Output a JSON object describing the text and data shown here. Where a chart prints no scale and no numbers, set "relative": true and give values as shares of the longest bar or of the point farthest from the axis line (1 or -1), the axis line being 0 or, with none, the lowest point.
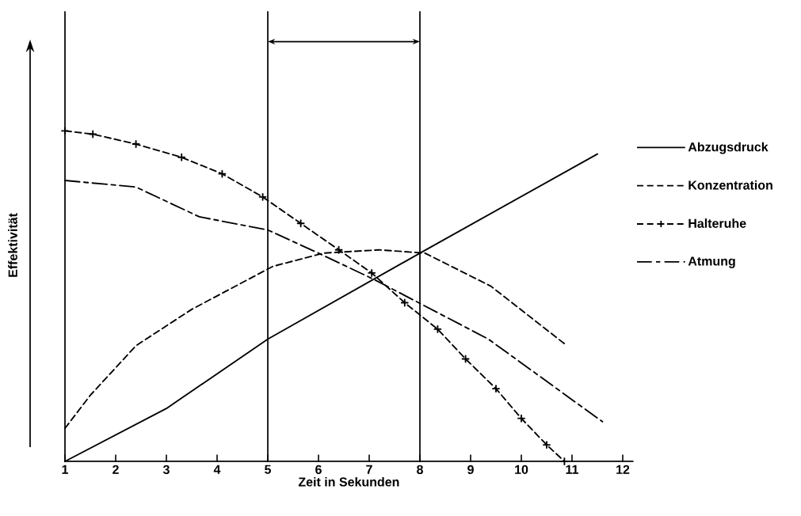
{
  "chart_data": {
    "type": "line",
    "xlabel": "Zeit in Sekunden",
    "ylabel": "Effektivität",
    "relative": true,
    "xlim": [
      1,
      12.2
    ],
    "xticks": [
      1,
      2,
      3,
      4,
      5,
      6,
      7,
      8,
      9,
      10,
      11,
      12
    ],
    "legend": "right",
    "ref_lines": [
      {
        "axis": "x",
        "value": 5,
        "color": "#000000"
      },
      {
        "axis": "x",
        "value": 8,
        "color": "#000000"
      }
    ],
    "series": [
      {
        "name": "Abzugsdruck",
        "color": "#000000",
        "line_style": "solid",
        "x": [
          1,
          3,
          5,
          8,
          11.5
        ],
        "values": [
          0,
          0.16,
          0.37,
          0.63,
          0.93
        ]
      },
      {
        "name": "Konzentration",
        "color": "#000000",
        "line_style": "dashed",
        "x": [
          1,
          1.5,
          2.4,
          3.5,
          5.1,
          6.1,
          7.2,
          8.1,
          9.4,
          10.9
        ],
        "values": [
          0.1,
          0.2,
          0.35,
          0.46,
          0.59,
          0.63,
          0.64,
          0.63,
          0.53,
          0.35
        ]
      },
      {
        "name": "Halteruhe",
        "color": "#000000",
        "line_style": "dashed",
        "marker": "cross",
        "x": [
          1,
          1.55,
          2.4,
          3.3,
          4.1,
          4.9,
          5.65,
          6.4,
          7.05,
          7.7,
          8.35,
          8.9,
          9.5,
          10,
          10.5,
          10.85
        ],
        "values": [
          1,
          0.99,
          0.96,
          0.92,
          0.87,
          0.8,
          0.72,
          0.64,
          0.57,
          0.48,
          0.4,
          0.31,
          0.22,
          0.13,
          0.05,
          0
        ]
      },
      {
        "name": "Atmung",
        "color": "#000000",
        "line_style": "dashdot",
        "x": [
          1,
          2.4,
          3.65,
          5,
          6,
          7.1,
          9.35,
          11.6
        ],
        "values": [
          0.85,
          0.83,
          0.74,
          0.7,
          0.63,
          0.55,
          0.37,
          0.12
        ]
      }
    ]
  }
}
